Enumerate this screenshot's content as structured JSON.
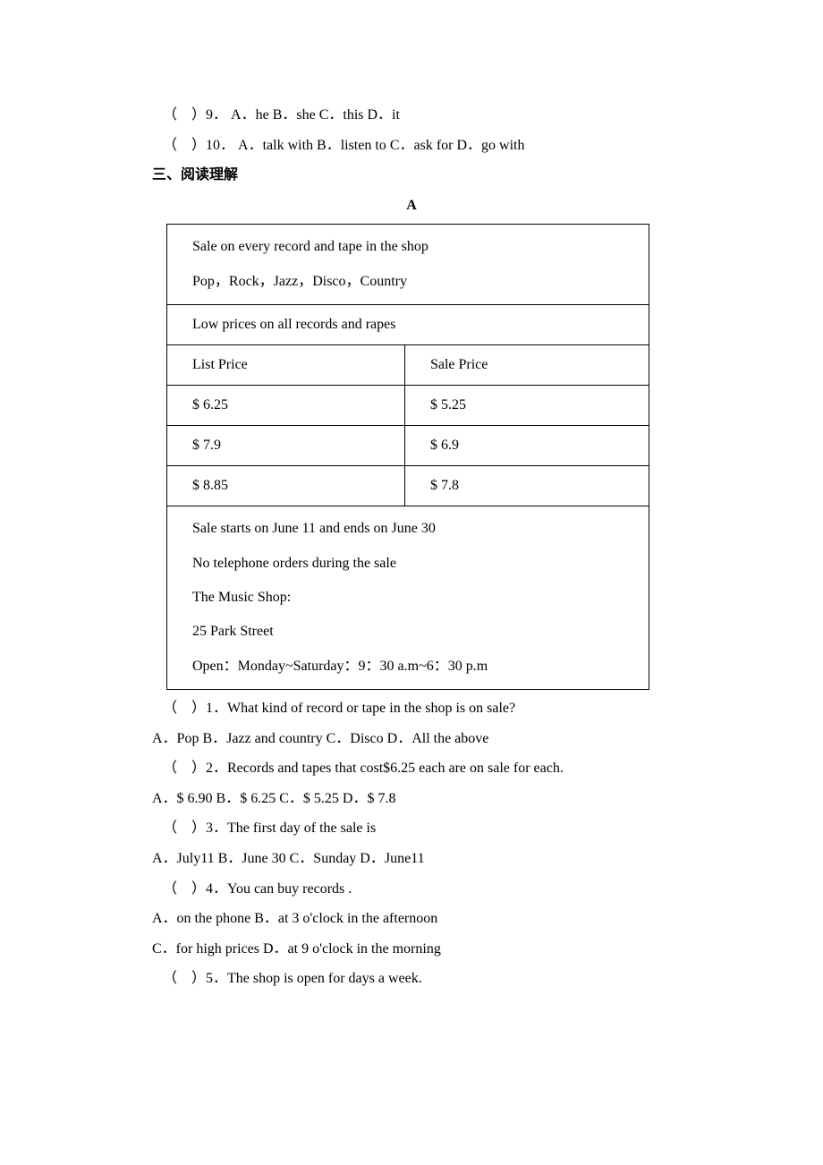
{
  "q9": {
    "prefix": "（　）9．",
    "A": "A．he",
    "B": "B．she",
    "C": "C．this",
    "D": "D．it"
  },
  "q10": {
    "prefix": "（　）10．",
    "A": "A．talk with",
    "B": "B．listen to",
    "C": "C．ask for",
    "D": "D．go with"
  },
  "section3_heading": "三、阅读理解",
  "passageA_label": "A",
  "table": {
    "r1_line1": "Sale on every record and tape in the shop",
    "r1_line2": "Pop，Rock，Jazz，Disco，Country",
    "r2": "Low prices on all records and rapes",
    "r3_left": "List Price",
    "r3_right": "Sale Price",
    "r4_left": "$ 6.25",
    "r4_right": "$ 5.25",
    "r5_left": "$ 7.9",
    "r5_right": "$ 6.9",
    "r6_left": "$ 8.85",
    "r6_right": "$ 7.8",
    "r7_line1": "Sale starts on June 11 and ends on June 30",
    "r7_line2": "No telephone orders during the sale",
    "r7_line3": "The Music Shop:",
    "r7_line4": "25 Park Street",
    "r7_line5": "Open：Monday~Saturday：9：30 a.m~6：30 p.m"
  },
  "qa": {
    "q1": "（　）1．What kind of record or tape in the shop is on sale?",
    "q1_opts": "A．Pop B．Jazz and country C．Disco D．All the above",
    "q2": "（　）2．Records and tapes that cost$6.25 each are on sale for each.",
    "q2_opts": "A．$ 6.90 B．$ 6.25 C．$ 5.25 D．$ 7.8",
    "q3": "（　）3．The first day of the sale is",
    "q3_opts": "A．July11 B．June 30 C．Sunday D．June11",
    "q4": "（　）4．You can buy records .",
    "q4_opts1": "A．on the phone B．at 3 o'clock in the afternoon",
    "q4_opts2": "C．for high prices D．at 9 o'clock in the morning",
    "q5": "（　）5．The shop is open for days a week."
  }
}
